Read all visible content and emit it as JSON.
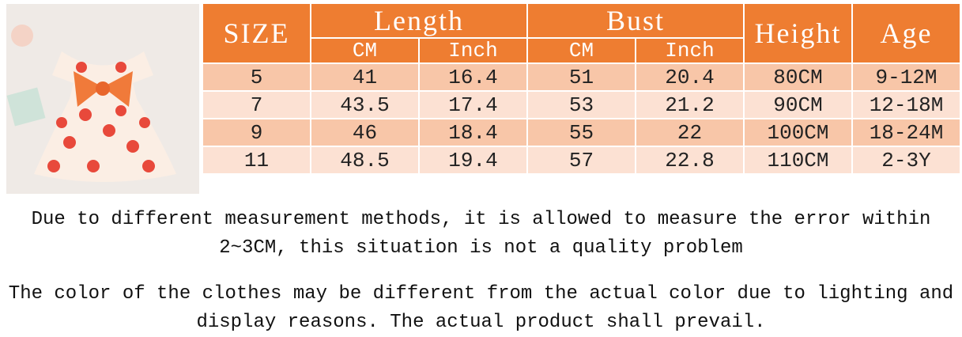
{
  "table": {
    "header": {
      "size": "SIZE",
      "length": "Length",
      "bust": "Bust",
      "height": "Height",
      "age": "Age",
      "sub": [
        "CM",
        "Inch",
        "CM",
        "Inch"
      ]
    },
    "rows": [
      [
        "5",
        "41",
        "16.4",
        "51",
        "20.4",
        "80CM",
        "9-12M"
      ],
      [
        "7",
        "43.5",
        "17.4",
        "53",
        "21.2",
        "90CM",
        "12-18M"
      ],
      [
        "9",
        "46",
        "18.4",
        "55",
        "22",
        "100CM",
        "18-24M"
      ],
      [
        "11",
        "48.5",
        "19.4",
        "57",
        "22.8",
        "110CM",
        "2-3Y"
      ]
    ]
  },
  "notes": [
    "Due to different measurement methods, it is allowed to measure the error within 2~3CM, this situation is not a quality problem",
    "The color of the clothes may be different from the actual color due to lighting and display reasons. The actual product shall prevail."
  ]
}
